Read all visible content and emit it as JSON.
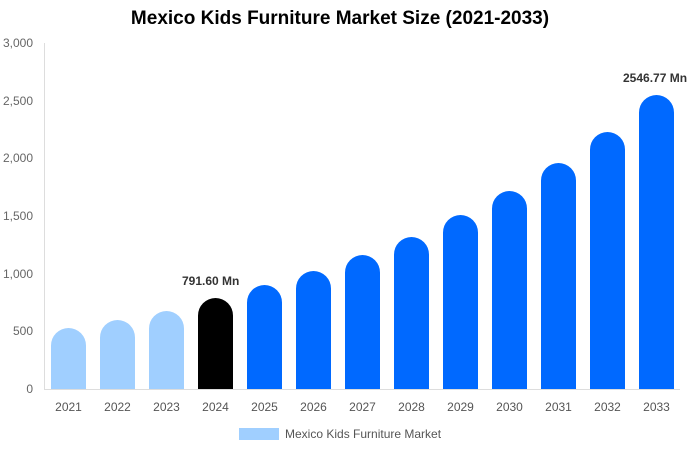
{
  "chart_data": {
    "type": "bar",
    "title": "Mexico Kids Furniture Market Size (2021-2033)",
    "xlabel": "",
    "ylabel": "",
    "ylim": [
      0,
      3000
    ],
    "yticks": [
      "0",
      "500",
      "1,000",
      "1,500",
      "2,000",
      "2,500",
      "3,000"
    ],
    "categories": [
      "2021",
      "2022",
      "2023",
      "2024",
      "2025",
      "2026",
      "2027",
      "2028",
      "2029",
      "2030",
      "2031",
      "2032",
      "2033"
    ],
    "series": [
      {
        "name": "Mexico Kids Furniture Market",
        "values": [
          529,
          598,
          676,
          791.6,
          902,
          1023,
          1162,
          1318,
          1509,
          1717,
          1960,
          2229,
          2546.77
        ]
      }
    ],
    "annotations": [
      {
        "category": "2024",
        "text": "791.60 Mn"
      },
      {
        "category": "2033",
        "text": "2546.77 Mn"
      }
    ],
    "colors": {
      "historical": "#a0cfff",
      "base_year": "#000000",
      "forecast": "#0069ff"
    },
    "legend_position": "bottom",
    "grid": false
  }
}
